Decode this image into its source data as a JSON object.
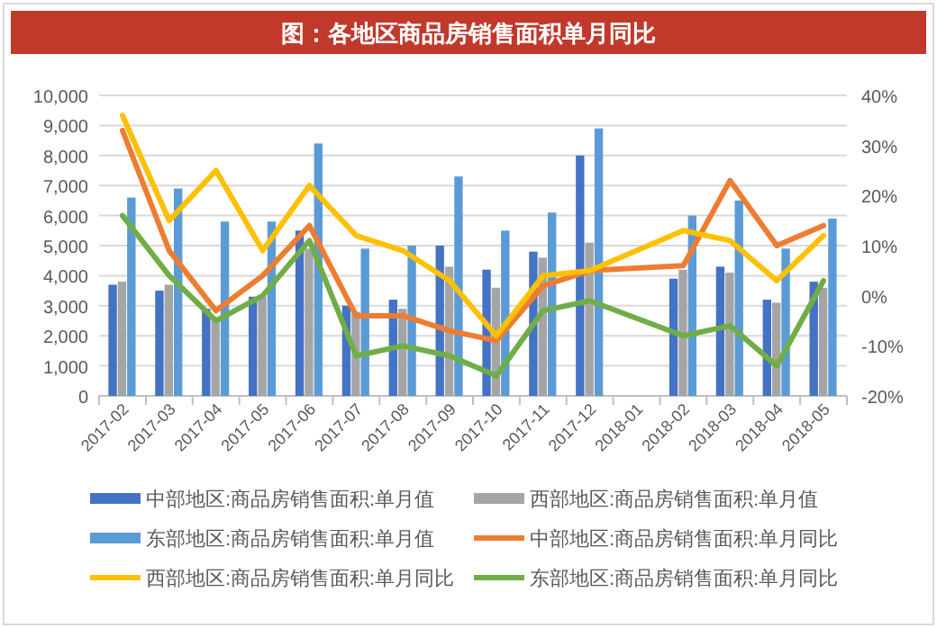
{
  "chart_data": {
    "type": "bar",
    "title": "图：各地区商品房销售面积单月同比",
    "categories": [
      "2017-02",
      "2017-03",
      "2017-04",
      "2017-05",
      "2017-06",
      "2017-07",
      "2017-08",
      "2017-09",
      "2017-10",
      "2017-11",
      "2017-12",
      "2018-01",
      "2018-02",
      "2018-03",
      "2018-04",
      "2018-05"
    ],
    "series": [
      {
        "name": "中部地区:商品房销售面积:单月值",
        "color": "#4472c4",
        "values": [
          3700,
          3500,
          2900,
          3300,
          5500,
          3000,
          3200,
          5000,
          4200,
          4800,
          8000,
          null,
          3900,
          4300,
          3200,
          3800
        ]
      },
      {
        "name": "西部地区:商品房销售面积:单月值",
        "color": "#a5a5a5",
        "values": [
          3800,
          3700,
          2600,
          3300,
          4900,
          2800,
          2900,
          4300,
          3600,
          4600,
          5100,
          null,
          4200,
          4100,
          3100,
          3600
        ]
      },
      {
        "name": "东部地区:商品房销售面积:单月值",
        "color": "#5b9bd5",
        "values": [
          6600,
          6900,
          5800,
          5800,
          8400,
          4900,
          5000,
          7300,
          5500,
          6100,
          8900,
          null,
          6000,
          6500,
          4900,
          5900
        ]
      },
      {
        "name": "中部地区:商品房销售面积:单月同比",
        "type": "line",
        "axis": "y2",
        "color": "#ed7d31",
        "values": [
          33,
          9,
          -3,
          4,
          14,
          -4,
          -4,
          -7,
          -9,
          2,
          5,
          null,
          6,
          23,
          10,
          14
        ]
      },
      {
        "name": "西部地区:商品房销售面积:单月同比",
        "type": "line",
        "axis": "y2",
        "color": "#ffc000",
        "values": [
          36,
          15,
          25,
          9,
          22,
          12,
          9,
          3,
          -8,
          4,
          5,
          null,
          13,
          11,
          3,
          12
        ]
      },
      {
        "name": "东部地区:商品房销售面积:单月同比",
        "type": "line",
        "axis": "y2",
        "color": "#70ad47",
        "values": [
          16,
          4,
          -5,
          0,
          11,
          -12,
          -10,
          -12,
          -16,
          -3,
          -1,
          null,
          -8,
          -6,
          -14,
          3
        ]
      }
    ],
    "ylim": [
      0,
      10000
    ],
    "yticks": [
      {
        "value": 0,
        "label": "0"
      },
      {
        "value": 1000,
        "label": "1,000"
      },
      {
        "value": 2000,
        "label": "2,000"
      },
      {
        "value": 3000,
        "label": "3,000"
      },
      {
        "value": 4000,
        "label": "4,000"
      },
      {
        "value": 5000,
        "label": "5,000"
      },
      {
        "value": 6000,
        "label": "6,000"
      },
      {
        "value": 7000,
        "label": "7,000"
      },
      {
        "value": 8000,
        "label": "8,000"
      },
      {
        "value": 9000,
        "label": "9,000"
      },
      {
        "value": 10000,
        "label": "10,000"
      }
    ],
    "y2lim": [
      -20,
      40
    ],
    "y2ticks": [
      {
        "value": -20,
        "label": "-20%"
      },
      {
        "value": -10,
        "label": "-10%"
      },
      {
        "value": 0,
        "label": "0%"
      },
      {
        "value": 10,
        "label": "10%"
      },
      {
        "value": 20,
        "label": "20%"
      },
      {
        "value": 30,
        "label": "30%"
      },
      {
        "value": 40,
        "label": "40%"
      }
    ],
    "grid": "y",
    "legend": "bottom"
  }
}
